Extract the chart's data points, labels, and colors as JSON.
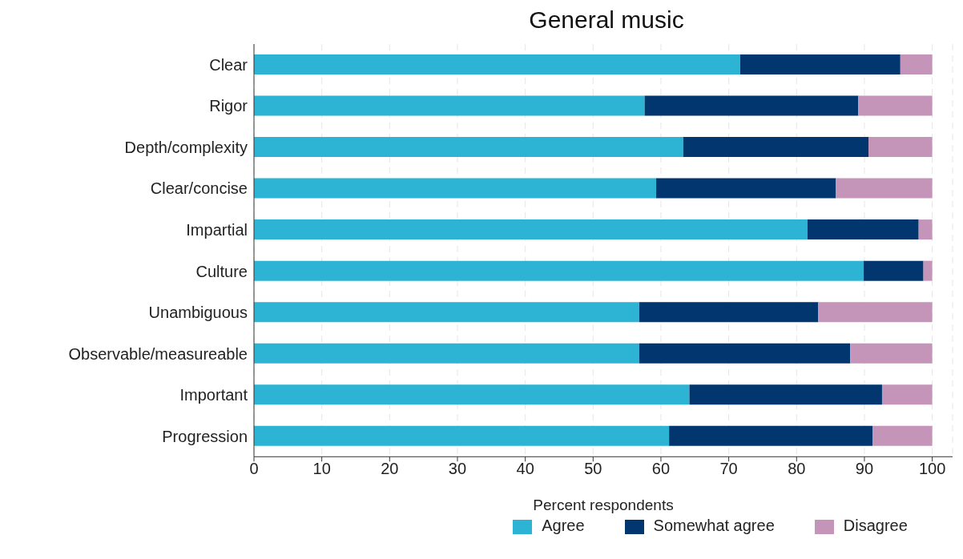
{
  "chart_data": {
    "type": "bar",
    "orientation": "horizontal",
    "stacked": true,
    "title": "General music",
    "xlabel": "Percent respondents",
    "categories": [
      "Clear",
      "Rigor",
      "Depth/complexity",
      "Clear/concise",
      "Impartial",
      "Culture",
      "Unambiguous",
      "Observable/measureable",
      "Important",
      "Progression"
    ],
    "series": [
      {
        "name": "Agree",
        "color": "#2db3d3",
        "values": [
          71.7,
          57.6,
          63.3,
          59.3,
          81.6,
          89.9,
          56.8,
          56.8,
          64.2,
          61.2
        ]
      },
      {
        "name": "Somewhat agree",
        "color": "#02366e",
        "values": [
          23.6,
          31.5,
          27.3,
          26.5,
          16.4,
          8.8,
          26.4,
          31.1,
          28.4,
          30.0
        ]
      },
      {
        "name": "Disagree",
        "color": "#c495b9",
        "values": [
          4.7,
          10.9,
          9.4,
          14.2,
          2.0,
          1.3,
          16.8,
          12.1,
          7.4,
          8.8
        ]
      }
    ],
    "xlim": [
      0,
      103
    ],
    "xticks": [
      0,
      10,
      20,
      30,
      40,
      50,
      60,
      70,
      80,
      90,
      100
    ],
    "grid": "x",
    "legend": "bottom"
  }
}
